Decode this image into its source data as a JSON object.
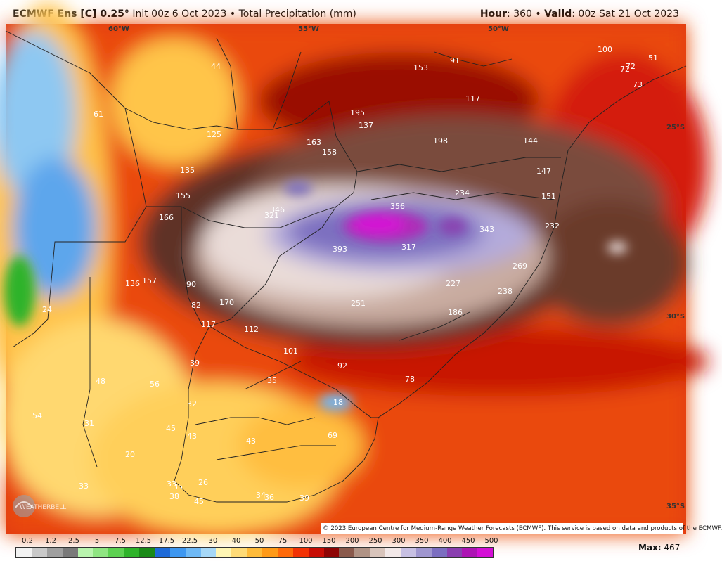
{
  "header": {
    "model": "ECMWF Ens [C] 0.25",
    "init": "Init 00z 6 Oct 2023",
    "separator": "•",
    "field": "Total Precipitation (mm)",
    "hour_label": "Hour",
    "hour_value": "360",
    "valid_label": "Valid",
    "valid_value": "00z Sat 21 Oct 2023"
  },
  "graticule": {
    "lon_60": "60°W",
    "lon_55": "55°W",
    "lon_50": "50°W",
    "lat_25": "25°S",
    "lat_30": "30°S",
    "lat_35": "35°S"
  },
  "station_values": [
    "44",
    "153",
    "91",
    "100",
    "72",
    "72",
    "51",
    "73",
    "61",
    "195",
    "137",
    "117",
    "125",
    "163",
    "158",
    "198",
    "144",
    "135",
    "147",
    "155",
    "234",
    "151",
    "166",
    "346",
    "321",
    "356",
    "343",
    "232",
    "393",
    "317",
    "269",
    "136",
    "157",
    "90",
    "227",
    "238",
    "82",
    "170",
    "251",
    "186",
    "24",
    "117",
    "112",
    "101",
    "92",
    "39",
    "48",
    "56",
    "78",
    "35",
    "32",
    "18",
    "54",
    "31",
    "45",
    "43",
    "43",
    "69",
    "20",
    "33",
    "33",
    "35",
    "26",
    "38",
    "45",
    "34",
    "36",
    "39"
  ],
  "colorbar": {
    "ticks": [
      "0.2",
      "1.2",
      "2.5",
      "5",
      "7.5",
      "12.5",
      "17.5",
      "22.5",
      "30",
      "40",
      "50",
      "75",
      "100",
      "150",
      "200",
      "250",
      "300",
      "350",
      "400",
      "450",
      "500"
    ],
    "colors": [
      "#f2f2f2",
      "#c9c9c9",
      "#9f9f9f",
      "#7a7a7a",
      "#b9f4ae",
      "#8fe582",
      "#5dd152",
      "#2eb32a",
      "#1a8a18",
      "#1e6ad8",
      "#3e97f0",
      "#6fb9f5",
      "#a6d8f7",
      "#fff6b4",
      "#ffdb77",
      "#ffbb3a",
      "#ff9a18",
      "#ff6a0a",
      "#f23205",
      "#c80d05",
      "#8e0404",
      "#8a5a4c",
      "#b09385",
      "#d8c4bb",
      "#f2e8e8",
      "#c7c0e3",
      "#9f96cf",
      "#7b6ec0",
      "#8a3fb0",
      "#ad14b4",
      "#d40fd6"
    ]
  },
  "max_label": "Max",
  "max_value": "467",
  "copyright": "© 2023 European Centre for Medium-Range Weather Forecasts (ECMWF). This service is based on data and products of the ECMWF.",
  "logo_text": "WEATHERBELL"
}
